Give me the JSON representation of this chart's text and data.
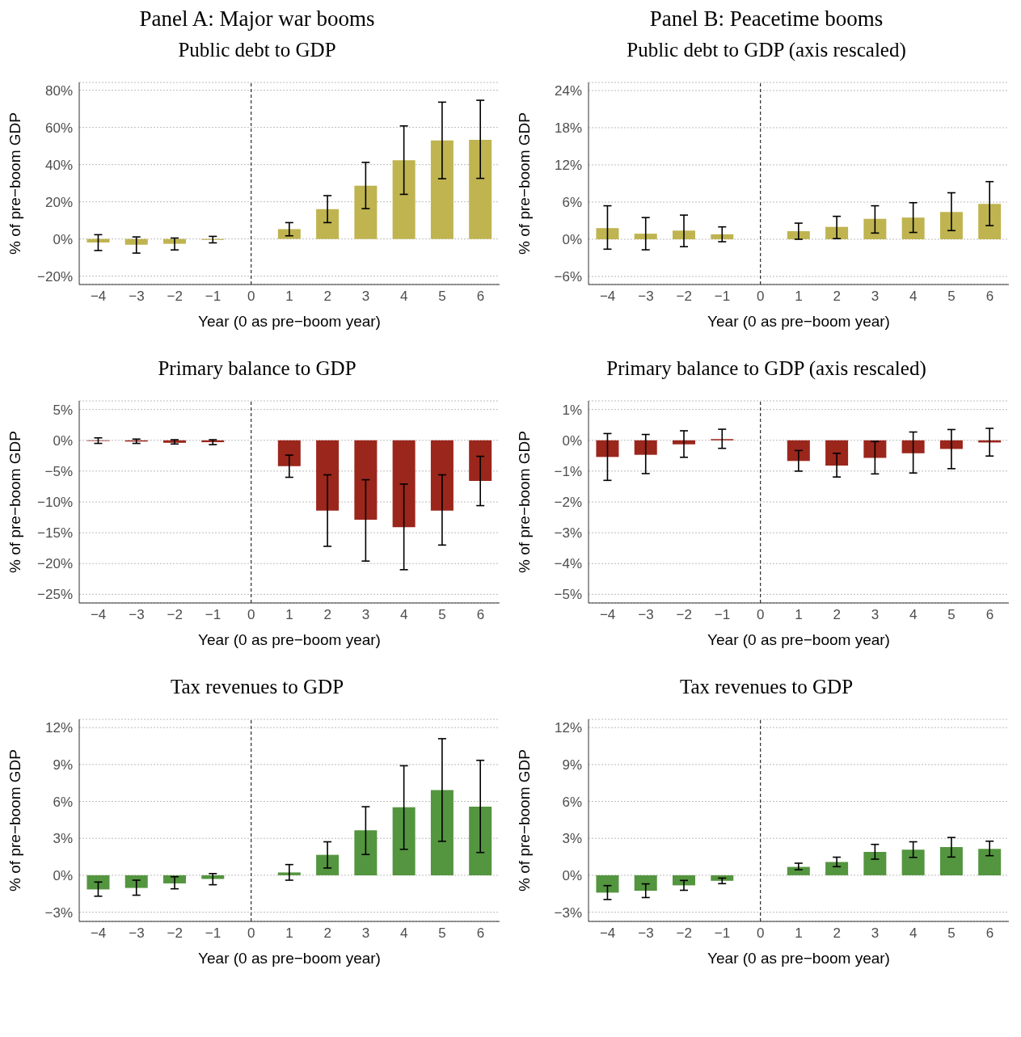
{
  "chart_data": [
    {
      "type": "bar",
      "title": "Panel A: Major war booms",
      "subtitle": "Public debt to GDP",
      "xlabel": "Year (0 as pre−boom year)",
      "ylabel": "% of pre−boom GDP",
      "categories": [
        "−4",
        "−3",
        "−2",
        "−1",
        "0",
        "1",
        "2",
        "3",
        "4",
        "5",
        "6"
      ],
      "color": "#bfb450",
      "values": [
        -1.9,
        -3.1,
        -2.6,
        -0.5,
        0,
        5.3,
        16.0,
        28.7,
        42.3,
        53.0,
        53.3
      ],
      "errors": [
        [
          -6.2,
          2.3
        ],
        [
          -7.6,
          1.1
        ],
        [
          -5.9,
          0.5
        ],
        [
          -2.1,
          1.4
        ],
        null,
        [
          1.7,
          8.8
        ],
        [
          8.8,
          23.3
        ],
        [
          16.3,
          41.2
        ],
        [
          24.0,
          60.8
        ],
        [
          32.4,
          73.6
        ],
        [
          32.6,
          74.6
        ]
      ],
      "ylim": [
        -24.5,
        84.2
      ],
      "yticks": [
        {
          "value": -20,
          "label": "−20%"
        },
        {
          "value": 0,
          "label": "0%"
        },
        {
          "value": 20,
          "label": "20%"
        },
        {
          "value": 40,
          "label": "40%"
        },
        {
          "value": 60,
          "label": "60%"
        },
        {
          "value": 80,
          "label": "80%"
        }
      ],
      "grid": "y",
      "ref_lines": [
        {
          "axis": "x",
          "value": "0",
          "line_style": "dashed"
        }
      ]
    },
    {
      "type": "bar",
      "title": "Panel B: Peacetime booms",
      "subtitle": "Public debt to GDP (axis rescaled)",
      "xlabel": "Year (0 as pre−boom year)",
      "ylabel": "% of pre−boom GDP",
      "categories": [
        "−4",
        "−3",
        "−2",
        "−1",
        "0",
        "1",
        "2",
        "3",
        "4",
        "5",
        "6"
      ],
      "color": "#bfb450",
      "values": [
        1.8,
        0.9,
        1.4,
        0.8,
        0,
        1.3,
        2.0,
        3.3,
        3.5,
        4.4,
        5.7
      ],
      "errors": [
        [
          -1.6,
          5.4
        ],
        [
          -1.7,
          3.5
        ],
        [
          -1.2,
          3.9
        ],
        [
          -0.4,
          2.0
        ],
        null,
        [
          0,
          2.6
        ],
        [
          0.1,
          3.7
        ],
        [
          1.0,
          5.4
        ],
        [
          1.1,
          5.9
        ],
        [
          1.4,
          7.5
        ],
        [
          2.2,
          9.3
        ]
      ],
      "ylim": [
        -7.3,
        25.3
      ],
      "yticks": [
        {
          "value": -6,
          "label": "−6%"
        },
        {
          "value": 0,
          "label": "0%"
        },
        {
          "value": 6,
          "label": "6%"
        },
        {
          "value": 12,
          "label": "12%"
        },
        {
          "value": 18,
          "label": "18%"
        },
        {
          "value": 24,
          "label": "24%"
        }
      ],
      "grid": "y",
      "ref_lines": [
        {
          "axis": "x",
          "value": "0",
          "line_style": "dashed"
        }
      ]
    },
    {
      "type": "bar",
      "title": "Primary balance to GDP",
      "xlabel": "Year (0 as pre−boom year)",
      "ylabel": "% of pre−boom GDP",
      "categories": [
        "−4",
        "−3",
        "−2",
        "−1",
        "0",
        "1",
        "2",
        "3",
        "4",
        "5",
        "6"
      ],
      "color": "#9b261c",
      "values": [
        -0.1,
        -0.2,
        -0.4,
        -0.3,
        0,
        -4.2,
        -11.4,
        -12.9,
        -14.1,
        -11.4,
        -6.6
      ],
      "errors": [
        [
          -0.5,
          0.4
        ],
        [
          -0.5,
          0.2
        ],
        [
          -0.6,
          0.1
        ],
        [
          -0.7,
          0.1
        ],
        null,
        [
          -6.0,
          -2.4
        ],
        [
          -17.2,
          -5.6
        ],
        [
          -19.6,
          -6.4
        ],
        [
          -21.0,
          -7.1
        ],
        [
          -17.0,
          -5.6
        ],
        [
          -10.6,
          -2.6
        ]
      ],
      "ylim": [
        -26.4,
        6.4
      ],
      "yticks": [
        {
          "value": -25,
          "label": "−25%"
        },
        {
          "value": -20,
          "label": "−20%"
        },
        {
          "value": -15,
          "label": "−15%"
        },
        {
          "value": -10,
          "label": "−10%"
        },
        {
          "value": -5,
          "label": "−5%"
        },
        {
          "value": 0,
          "label": "0%"
        },
        {
          "value": 5,
          "label": "5%"
        }
      ],
      "grid": "y",
      "ref_lines": [
        {
          "axis": "x",
          "value": "0",
          "line_style": "dashed"
        }
      ]
    },
    {
      "type": "bar",
      "title": "Primary balance to GDP (axis rescaled)",
      "xlabel": "Year (0 as pre−boom year)",
      "ylabel": "% of pre−boom GDP",
      "categories": [
        "−4",
        "−3",
        "−2",
        "−1",
        "0",
        "1",
        "2",
        "3",
        "4",
        "5",
        "6"
      ],
      "color": "#9b261c",
      "values": [
        -0.54,
        -0.47,
        -0.13,
        0.04,
        0,
        -0.67,
        -0.82,
        -0.57,
        -0.42,
        -0.28,
        -0.07
      ],
      "errors": [
        [
          -1.3,
          0.22
        ],
        [
          -1.08,
          0.19
        ],
        [
          -0.55,
          0.31
        ],
        [
          -0.26,
          0.36
        ],
        null,
        [
          -1.0,
          -0.33
        ],
        [
          -1.19,
          -0.42
        ],
        [
          -1.09,
          -0.04
        ],
        [
          -1.06,
          0.27
        ],
        [
          -0.92,
          0.35
        ],
        [
          -0.51,
          0.39
        ]
      ],
      "ylim": [
        -5.28,
        1.28
      ],
      "yticks": [
        {
          "value": -5,
          "label": "−5%"
        },
        {
          "value": -4,
          "label": "−4%"
        },
        {
          "value": -3,
          "label": "−3%"
        },
        {
          "value": -2,
          "label": "−2%"
        },
        {
          "value": -1,
          "label": "−1%"
        },
        {
          "value": 0,
          "label": "0%"
        },
        {
          "value": 1,
          "label": "1%"
        }
      ],
      "grid": "y",
      "ref_lines": [
        {
          "axis": "x",
          "value": "0",
          "line_style": "dashed"
        }
      ]
    },
    {
      "type": "bar",
      "title": "Tax revenues to GDP",
      "xlabel": "Year (0 as pre−boom year)",
      "ylabel": "% of pre−boom GDP",
      "categories": [
        "−4",
        "−3",
        "−2",
        "−1",
        "0",
        "1",
        "2",
        "3",
        "4",
        "5",
        "6"
      ],
      "color": "#54953f",
      "values": [
        -1.15,
        -1.03,
        -0.66,
        -0.3,
        0,
        0.23,
        1.66,
        3.65,
        5.53,
        6.93,
        5.57
      ],
      "errors": [
        [
          -1.7,
          -0.55
        ],
        [
          -1.62,
          -0.4
        ],
        [
          -1.1,
          -0.12
        ],
        [
          -0.77,
          0.14
        ],
        null,
        [
          -0.4,
          0.87
        ],
        [
          0.59,
          2.72
        ],
        [
          1.69,
          5.57
        ],
        [
          2.11,
          8.9
        ],
        [
          2.76,
          11.1
        ],
        [
          1.85,
          9.34
        ]
      ],
      "ylim": [
        -3.75,
        12.67
      ],
      "yticks": [
        {
          "value": -3,
          "label": "−3%"
        },
        {
          "value": 0,
          "label": "0%"
        },
        {
          "value": 3,
          "label": "3%"
        },
        {
          "value": 6,
          "label": "6%"
        },
        {
          "value": 9,
          "label": "9%"
        },
        {
          "value": 12,
          "label": "12%"
        }
      ],
      "grid": "y",
      "ref_lines": [
        {
          "axis": "x",
          "value": "0",
          "line_style": "dashed"
        }
      ]
    },
    {
      "type": "bar",
      "title": "Tax revenues to GDP",
      "xlabel": "Year (0 as pre−boom year)",
      "ylabel": "% of pre−boom GDP",
      "categories": [
        "−4",
        "−3",
        "−2",
        "−1",
        "0",
        "1",
        "2",
        "3",
        "4",
        "5",
        "6"
      ],
      "color": "#54953f",
      "values": [
        -1.41,
        -1.26,
        -0.82,
        -0.45,
        0,
        0.68,
        1.08,
        1.9,
        2.08,
        2.3,
        2.15
      ],
      "errors": [
        [
          -1.97,
          -0.84
        ],
        [
          -1.81,
          -0.7
        ],
        [
          -1.22,
          -0.42
        ],
        [
          -0.68,
          -0.23
        ],
        null,
        [
          0.45,
          0.98
        ],
        [
          0.7,
          1.47
        ],
        [
          1.31,
          2.51
        ],
        [
          1.45,
          2.72
        ],
        [
          1.48,
          3.07
        ],
        [
          1.59,
          2.77
        ]
      ],
      "ylim": [
        -3.75,
        12.67
      ],
      "yticks": [
        {
          "value": -3,
          "label": "−3%"
        },
        {
          "value": 0,
          "label": "0%"
        },
        {
          "value": 3,
          "label": "3%"
        },
        {
          "value": 6,
          "label": "6%"
        },
        {
          "value": 9,
          "label": "9%"
        },
        {
          "value": 12,
          "label": "12%"
        }
      ],
      "grid": "y",
      "ref_lines": [
        {
          "axis": "x",
          "value": "0",
          "line_style": "dashed"
        }
      ]
    }
  ]
}
